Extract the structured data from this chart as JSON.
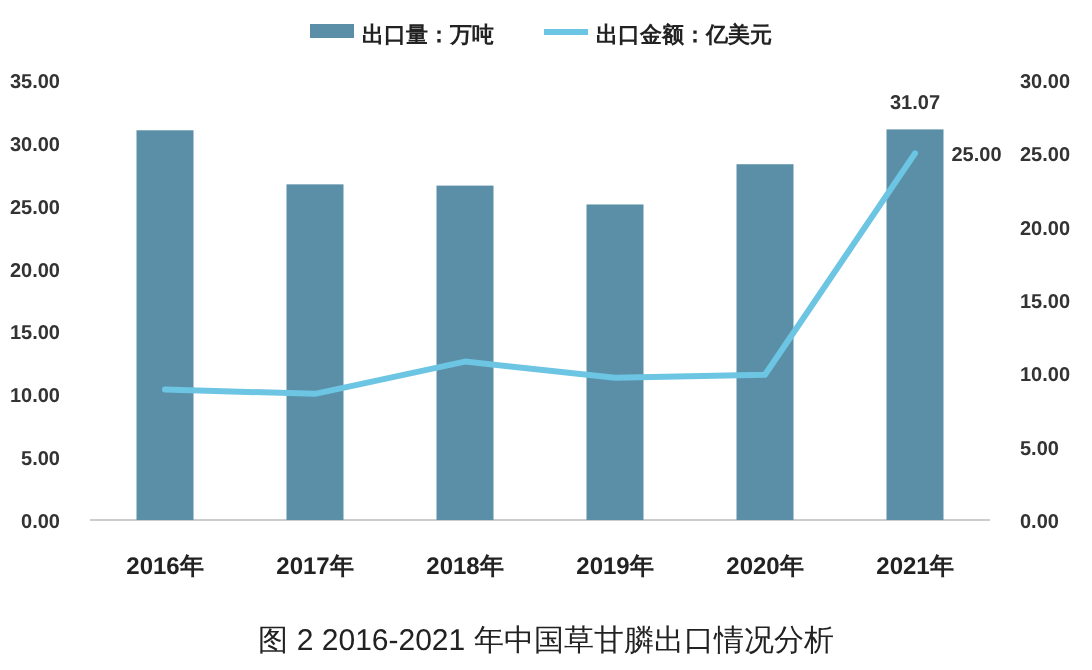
{
  "chart_data": {
    "type": "bar",
    "title": "图 2 2016-2021 年中国草甘膦出口情况分析",
    "categories": [
      "2016年",
      "2017年",
      "2018年",
      "2019年",
      "2020年",
      "2021年"
    ],
    "series": [
      {
        "name": "出口量：万吨",
        "color": "#5b8fa8",
        "values": [
          31.0,
          26.7,
          26.6,
          25.1,
          28.3,
          31.07
        ],
        "value_labels": [
          null,
          null,
          null,
          null,
          null,
          "31.07"
        ]
      },
      {
        "name": "出口金额：亿美元",
        "type": "line",
        "axis": "y2",
        "color": "#6cc5e3",
        "values": [
          8.9,
          8.6,
          10.8,
          9.7,
          9.9,
          25.0
        ],
        "value_labels": [
          null,
          null,
          null,
          null,
          null,
          "25.00"
        ]
      }
    ],
    "ylim": [
      0,
      35
    ],
    "yticks": [
      {
        "value": 0,
        "label": "0.00"
      },
      {
        "value": 5,
        "label": "5.00"
      },
      {
        "value": 10,
        "label": "10.00"
      },
      {
        "value": 15,
        "label": "15.00"
      },
      {
        "value": 20,
        "label": "20.00"
      },
      {
        "value": 25,
        "label": "25.00"
      },
      {
        "value": 30,
        "label": "30.00"
      },
      {
        "value": 35,
        "label": "35.00"
      }
    ],
    "y2lim": [
      0,
      30
    ],
    "y2ticks": [
      {
        "value": 0,
        "label": "0.00"
      },
      {
        "value": 5,
        "label": "5.00"
      },
      {
        "value": 10,
        "label": "10.00"
      },
      {
        "value": 15,
        "label": "15.00"
      },
      {
        "value": 20,
        "label": "20.00"
      },
      {
        "value": 25,
        "label": "25.00"
      },
      {
        "value": 30,
        "label": "30.00"
      }
    ],
    "legend": "top",
    "grid": false
  }
}
